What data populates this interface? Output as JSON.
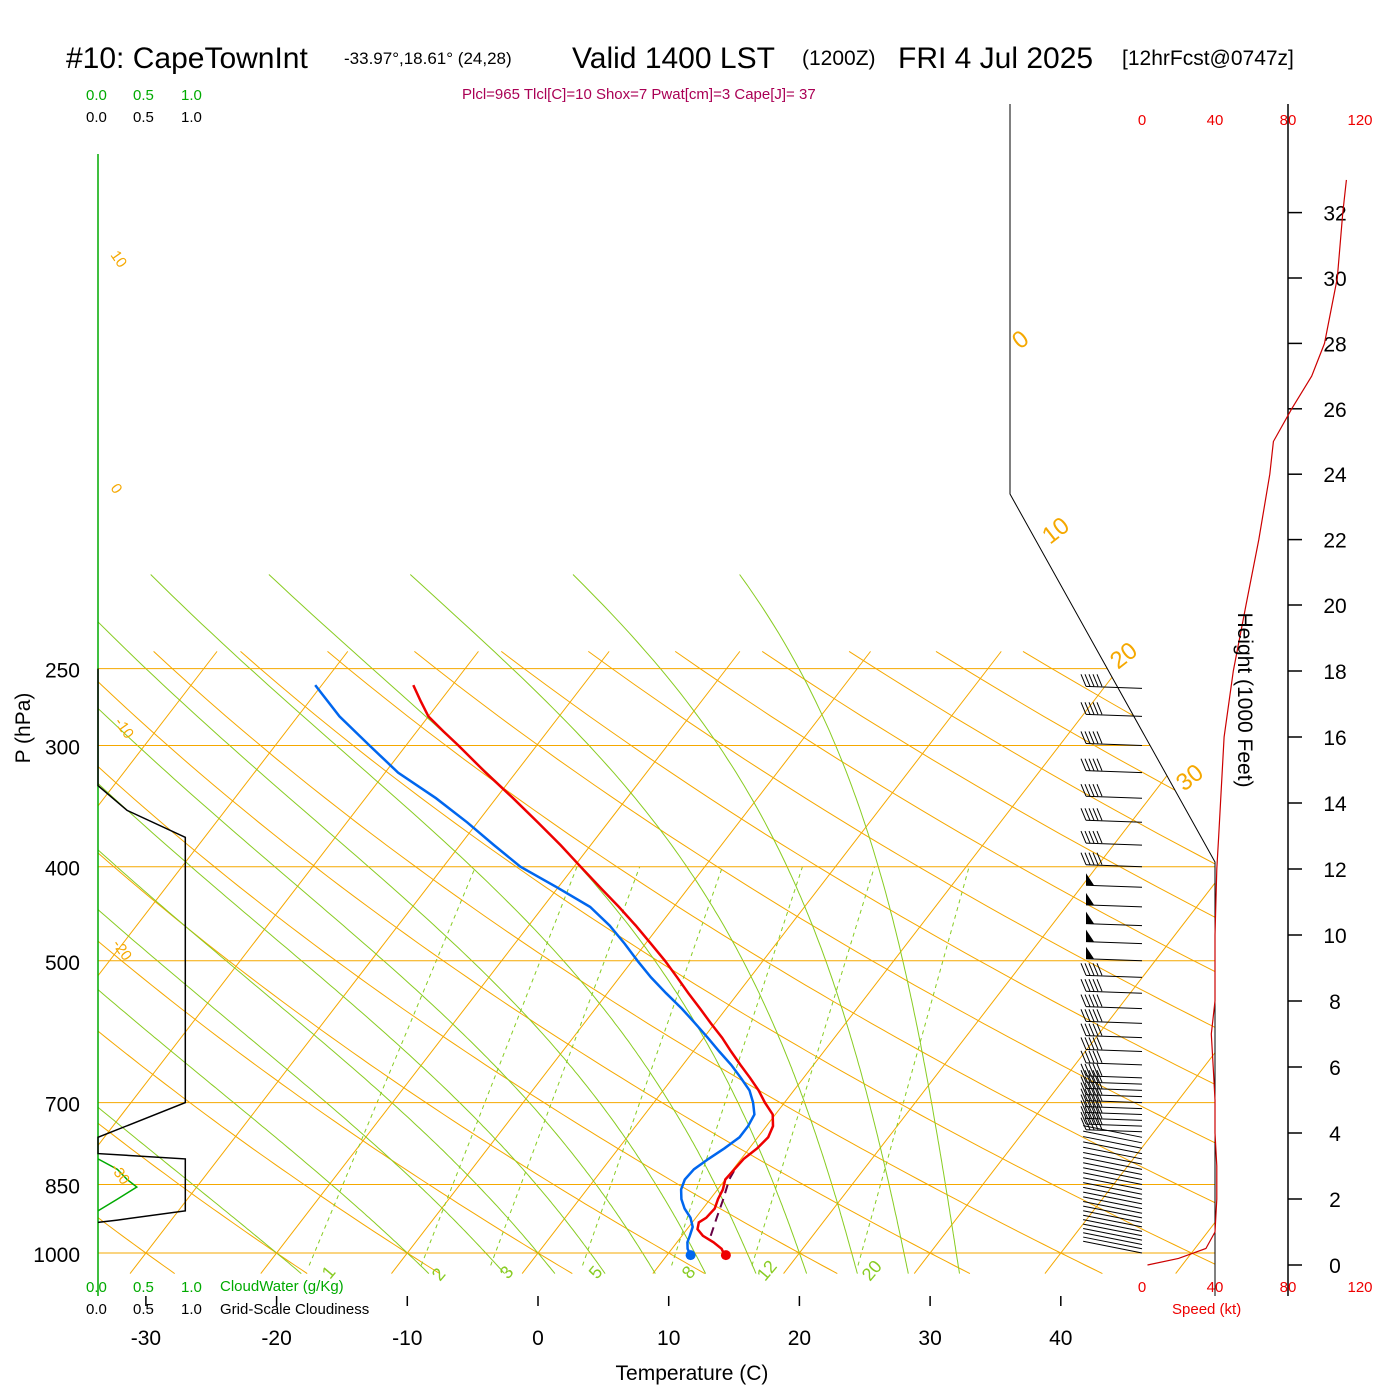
{
  "header": {
    "station": "#10: CapeTownInt",
    "coords": "-33.97°,18.61° (24,28)",
    "valid": "Valid 1400 LST",
    "zulu": "(1200Z)",
    "date": "FRI 4 Jul 2025",
    "forecast": "[12hrFcst@0747z]",
    "indices": "Plcl=965 Tlcl[C]=10 Shox=7 Pwat[cm]=3 Cape[J]= 37"
  },
  "colors": {
    "temperature": "#ee0000",
    "dewpoint": "#0066ee",
    "parcel": "#660044",
    "isotherm": "#f5a800",
    "dry_adiabat": "#f5a800",
    "moist_adiabat": "#88cc22",
    "mixing_ratio": "#88cc22",
    "cloud_water": "#00aa00",
    "cloudiness": "#000000",
    "wind_speed": "#cc0000",
    "indices_text": "#aa0055"
  },
  "chart_data": {
    "type": "skew-t",
    "xlabel": "Temperature (C)",
    "ylabel": "P (hPa)",
    "right_axis_label": "Height (1000 Feet)",
    "x_ticks": [
      "-30",
      "-20",
      "-10",
      "0",
      "10",
      "20",
      "30",
      "40"
    ],
    "pressure_ticks": [
      "250",
      "300",
      "400",
      "500",
      "700",
      "850",
      "1000"
    ],
    "height_ticks": [
      "0",
      "2",
      "4",
      "6",
      "8",
      "10",
      "12",
      "14",
      "16",
      "18",
      "20",
      "22",
      "24",
      "26",
      "28",
      "30",
      "32"
    ],
    "speed_ticks": [
      "0",
      "40",
      "80",
      "120"
    ],
    "speed_label": "Speed (kt)",
    "isotherm_labels": [
      "10",
      "0",
      "-10",
      "-20",
      "-30"
    ],
    "right_isotherm_labels": [
      "0",
      "10",
      "20",
      "30"
    ],
    "mixing_ratio_labels": [
      "1",
      "2",
      "3",
      "5",
      "8",
      "12",
      "20"
    ],
    "cloud_scale_ticks": [
      "0.0",
      "0.5",
      "1.0"
    ],
    "cloud_water_label": "CloudWater (g/Kg)",
    "cloudiness_label": "Grid-Scale Cloudiness",
    "temperature": [
      [
        1005,
        14.5
      ],
      [
        1000,
        14.2
      ],
      [
        990,
        13.8
      ],
      [
        975,
        12.8
      ],
      [
        960,
        11.6
      ],
      [
        945,
        10.8
      ],
      [
        930,
        10.5
      ],
      [
        920,
        10.8
      ],
      [
        900,
        10.9
      ],
      [
        880,
        10.6
      ],
      [
        860,
        10.4
      ],
      [
        840,
        10.0
      ],
      [
        820,
        10.1
      ],
      [
        800,
        10.2
      ],
      [
        780,
        10.6
      ],
      [
        760,
        10.8
      ],
      [
        740,
        10.5
      ],
      [
        720,
        9.8
      ],
      [
        700,
        8.5
      ],
      [
        680,
        7.3
      ],
      [
        660,
        5.9
      ],
      [
        640,
        4.4
      ],
      [
        620,
        2.9
      ],
      [
        600,
        1.4
      ],
      [
        580,
        -0.3
      ],
      [
        560,
        -2.0
      ],
      [
        540,
        -3.8
      ],
      [
        520,
        -5.6
      ],
      [
        500,
        -7.5
      ],
      [
        480,
        -9.6
      ],
      [
        460,
        -11.8
      ],
      [
        440,
        -14.2
      ],
      [
        420,
        -16.8
      ],
      [
        400,
        -19.5
      ],
      [
        380,
        -22.3
      ],
      [
        360,
        -25.4
      ],
      [
        340,
        -28.7
      ],
      [
        320,
        -32.3
      ],
      [
        300,
        -36.0
      ],
      [
        290,
        -38.0
      ],
      [
        280,
        -40.0
      ],
      [
        270,
        -41.5
      ],
      [
        260,
        -43.0
      ]
    ],
    "dewpoint": [
      [
        1005,
        11.8
      ],
      [
        1000,
        11.6
      ],
      [
        990,
        11.2
      ],
      [
        975,
        10.8
      ],
      [
        960,
        10.6
      ],
      [
        940,
        10.3
      ],
      [
        920,
        9.6
      ],
      [
        900,
        8.6
      ],
      [
        880,
        7.8
      ],
      [
        860,
        7.2
      ],
      [
        840,
        6.9
      ],
      [
        820,
        7.0
      ],
      [
        800,
        7.5
      ],
      [
        780,
        8.1
      ],
      [
        760,
        8.6
      ],
      [
        740,
        8.6
      ],
      [
        720,
        8.4
      ],
      [
        700,
        7.6
      ],
      [
        680,
        6.6
      ],
      [
        660,
        5.2
      ],
      [
        640,
        3.7
      ],
      [
        620,
        2.0
      ],
      [
        600,
        0.3
      ],
      [
        580,
        -1.5
      ],
      [
        560,
        -3.4
      ],
      [
        540,
        -5.5
      ],
      [
        520,
        -7.6
      ],
      [
        500,
        -9.6
      ],
      [
        480,
        -11.6
      ],
      [
        460,
        -13.8
      ],
      [
        440,
        -16.4
      ],
      [
        420,
        -20.1
      ],
      [
        400,
        -24.1
      ],
      [
        380,
        -27.4
      ],
      [
        360,
        -30.8
      ],
      [
        340,
        -34.6
      ],
      [
        320,
        -39.0
      ],
      [
        300,
        -42.8
      ],
      [
        280,
        -46.8
      ],
      [
        260,
        -50.5
      ]
    ],
    "surface_temperature": [
      1005,
      14.5
    ],
    "surface_dewpoint": [
      1005,
      11.8
    ],
    "parcel": [
      [
        960,
        12.2
      ],
      [
        920,
        11.6
      ],
      [
        880,
        11.0
      ],
      [
        840,
        10.3
      ],
      [
        815,
        10.1
      ]
    ],
    "wind_levels": [
      1000,
      990,
      980,
      970,
      960,
      950,
      940,
      930,
      920,
      910,
      900,
      890,
      880,
      870,
      860,
      850,
      840,
      830,
      820,
      810,
      800,
      790,
      780,
      770,
      760,
      750,
      740,
      730,
      720,
      710,
      700,
      690,
      680,
      670,
      660,
      640,
      620,
      600,
      580,
      560,
      540,
      520,
      500,
      480,
      460,
      440,
      420,
      400,
      380,
      360,
      340,
      320,
      300,
      280,
      262
    ],
    "wind_speed_profile": [
      [
        0,
        3
      ],
      [
        0.2,
        20
      ],
      [
        0.5,
        35
      ],
      [
        1,
        40
      ],
      [
        2,
        41
      ],
      [
        3,
        41
      ],
      [
        4,
        40
      ],
      [
        5,
        40
      ],
      [
        6,
        39
      ],
      [
        7,
        38
      ],
      [
        8,
        40
      ],
      [
        10,
        40
      ],
      [
        12,
        41
      ],
      [
        13,
        42
      ],
      [
        14,
        43
      ],
      [
        15,
        44
      ],
      [
        16,
        45
      ],
      [
        18,
        50
      ],
      [
        20,
        57
      ],
      [
        22,
        64
      ],
      [
        24,
        70
      ],
      [
        25,
        72
      ],
      [
        26,
        82
      ],
      [
        27,
        93
      ],
      [
        28,
        100
      ],
      [
        30,
        107
      ],
      [
        32,
        110
      ],
      [
        33,
        112
      ]
    ],
    "cloudiness_profile": [
      [
        250,
        0.0
      ],
      [
        330,
        0.0
      ],
      [
        350,
        0.3
      ],
      [
        373,
        0.9
      ],
      [
        380,
        0.9
      ],
      [
        700,
        0.9
      ],
      [
        760,
        0.0
      ],
      [
        790,
        0.0
      ],
      [
        800,
        0.9
      ],
      [
        905,
        0.9
      ],
      [
        925,
        0.2
      ],
      [
        930,
        0.0
      ]
    ],
    "cloud_water_profile": [
      [
        800,
        0.0
      ],
      [
        820,
        0.2
      ],
      [
        840,
        0.3
      ],
      [
        855,
        0.4
      ],
      [
        880,
        0.2
      ],
      [
        905,
        0.0
      ]
    ]
  }
}
